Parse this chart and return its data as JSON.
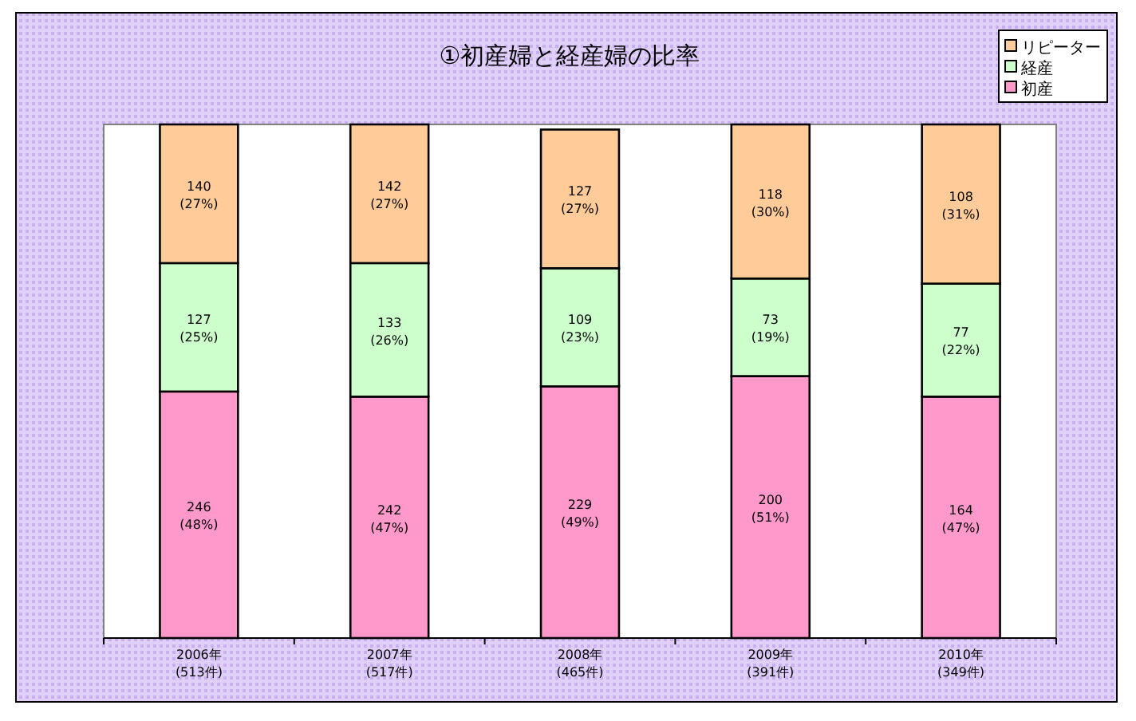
{
  "chart_data": {
    "type": "bar",
    "title": "①初産婦と経産婦の比率",
    "stacked": true,
    "legend": "top right",
    "categories": [
      "2006年\n(513件)",
      "2007年\n(517件)",
      "2008年\n(465件)",
      "2009年\n(391件)",
      "2010年\n(349件)"
    ],
    "series": [
      {
        "name": "初産",
        "color": "#ff99cc",
        "values": [
          48,
          47,
          49,
          51,
          47
        ],
        "value_labels": [
          "246\n(48%)",
          "242\n(47%)",
          "229\n(49%)",
          "200\n(51%)",
          "164\n(47%)"
        ]
      },
      {
        "name": "経産",
        "color": "#ccffcc",
        "values": [
          25,
          26,
          23,
          19,
          22
        ],
        "value_labels": [
          "127\n(25%)",
          "133\n(26%)",
          "109\n(23%)",
          "73\n(19%)",
          "77\n(22%)"
        ]
      },
      {
        "name": "リピーター",
        "color": "#ffcc99",
        "values": [
          27,
          27,
          27,
          30,
          31
        ],
        "value_labels": [
          "140\n(27%)",
          "142\n(27%)",
          "127\n(27%)",
          "118\n(30%)",
          "108\n(31%)"
        ]
      }
    ]
  }
}
